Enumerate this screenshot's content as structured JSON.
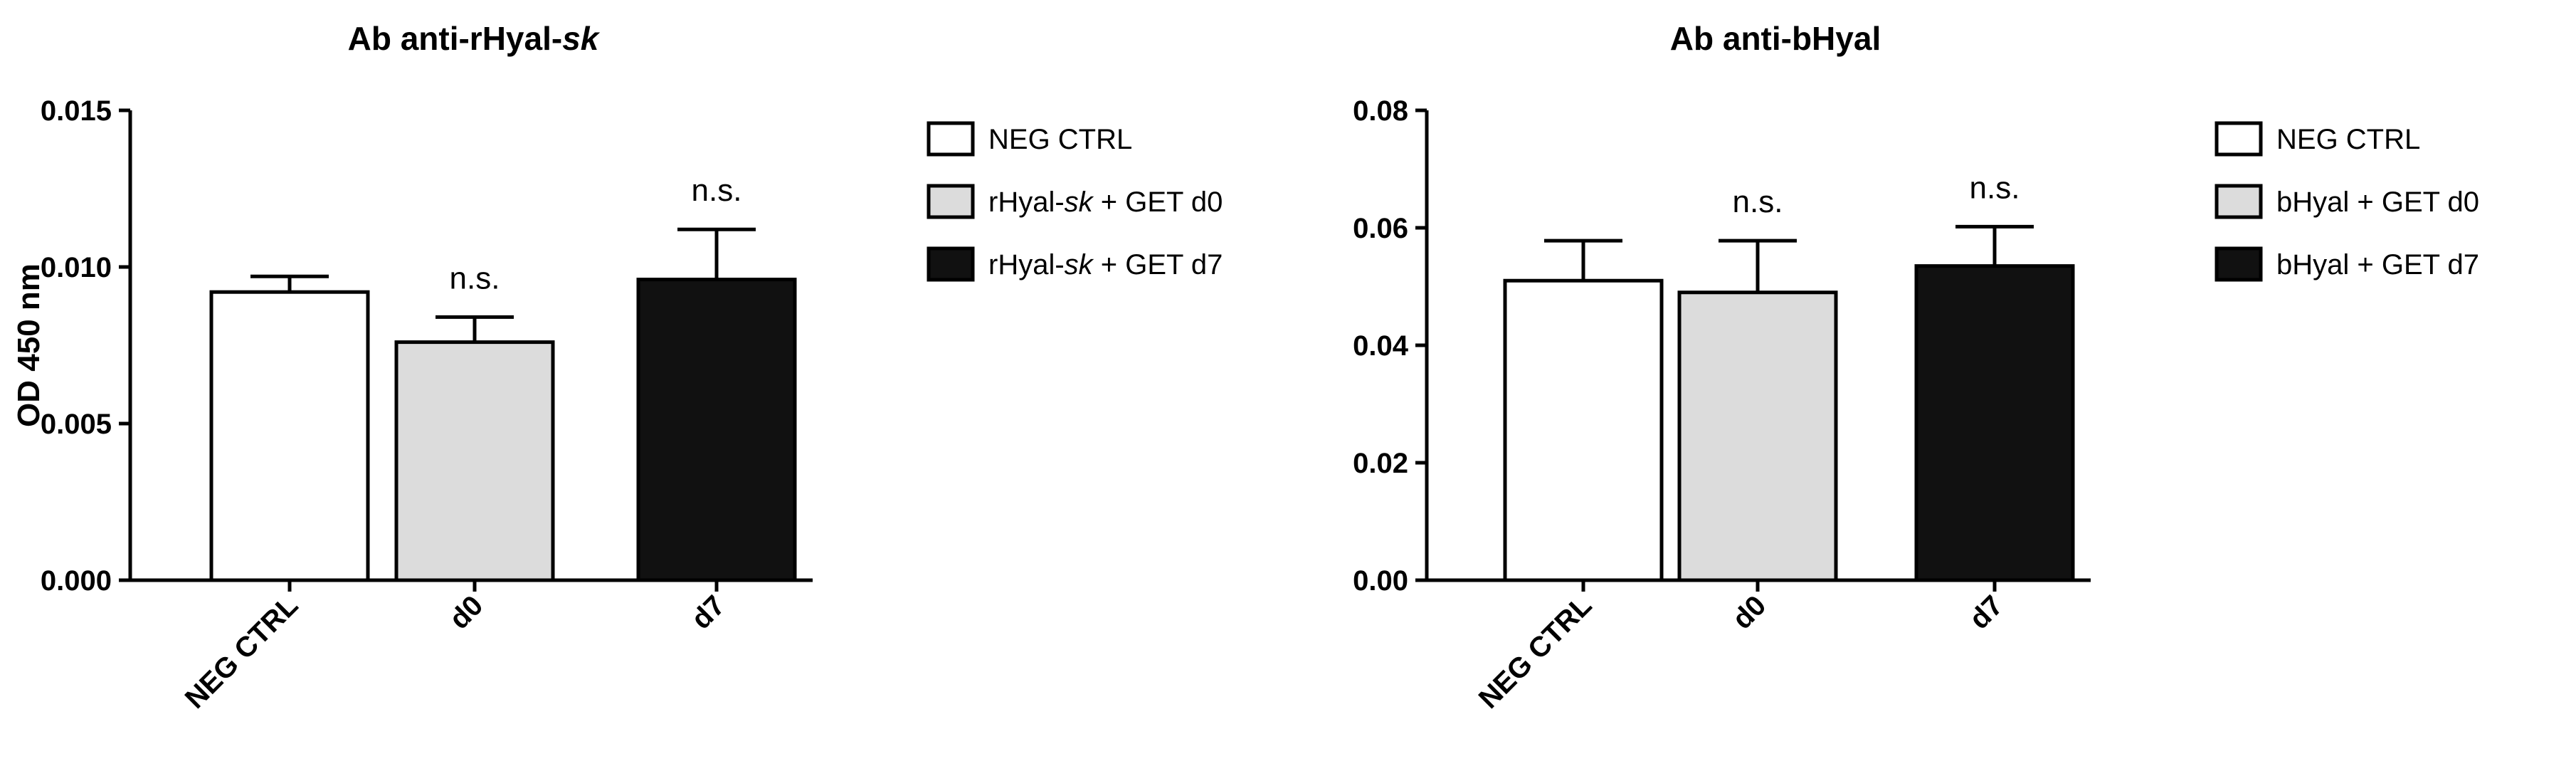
{
  "colors": {
    "neg_ctrl": "#ffffff",
    "d0": "#dcdcdc",
    "d7": "#111111",
    "axis": "#000000"
  },
  "chart_data": [
    {
      "type": "bar",
      "title": "Ab anti-rHyal-",
      "title_italic": "sk",
      "ylabel": "OD 450 nm",
      "categories": [
        "NEG CTRL",
        "d0",
        "d7"
      ],
      "values": [
        0.0092,
        0.0076,
        0.0096
      ],
      "errors": [
        0.0005,
        0.0008,
        0.0016
      ],
      "significance": [
        "",
        "n.s.",
        "n.s."
      ],
      "ylim": [
        0,
        0.015
      ],
      "yticks": [
        "0.000",
        "0.005",
        "0.010",
        "0.015"
      ],
      "legend": [
        {
          "pre": "NEG CTRL",
          "italic": "",
          "post": ""
        },
        {
          "pre": "rHyal-",
          "italic": "sk",
          "post": " + GET d0"
        },
        {
          "pre": "rHyal-",
          "italic": "sk",
          "post": " + GET d7"
        }
      ],
      "legend_position": "right"
    },
    {
      "type": "bar",
      "title": "Ab anti-bHyal",
      "title_italic": "",
      "ylabel": "",
      "categories": [
        "NEG CTRL",
        "d0",
        "d7"
      ],
      "values": [
        0.051,
        0.049,
        0.0535
      ],
      "errors": [
        0.0068,
        0.0088,
        0.0067
      ],
      "significance": [
        "",
        "n.s.",
        "n.s."
      ],
      "ylim": [
        0,
        0.08
      ],
      "yticks": [
        "0.00",
        "0.02",
        "0.04",
        "0.06",
        "0.08"
      ],
      "legend": [
        {
          "pre": "NEG CTRL",
          "italic": "",
          "post": ""
        },
        {
          "pre": "bHyal + GET d0",
          "italic": "",
          "post": ""
        },
        {
          "pre": "bHyal + GET d7",
          "italic": "",
          "post": ""
        }
      ],
      "legend_position": "right"
    }
  ]
}
